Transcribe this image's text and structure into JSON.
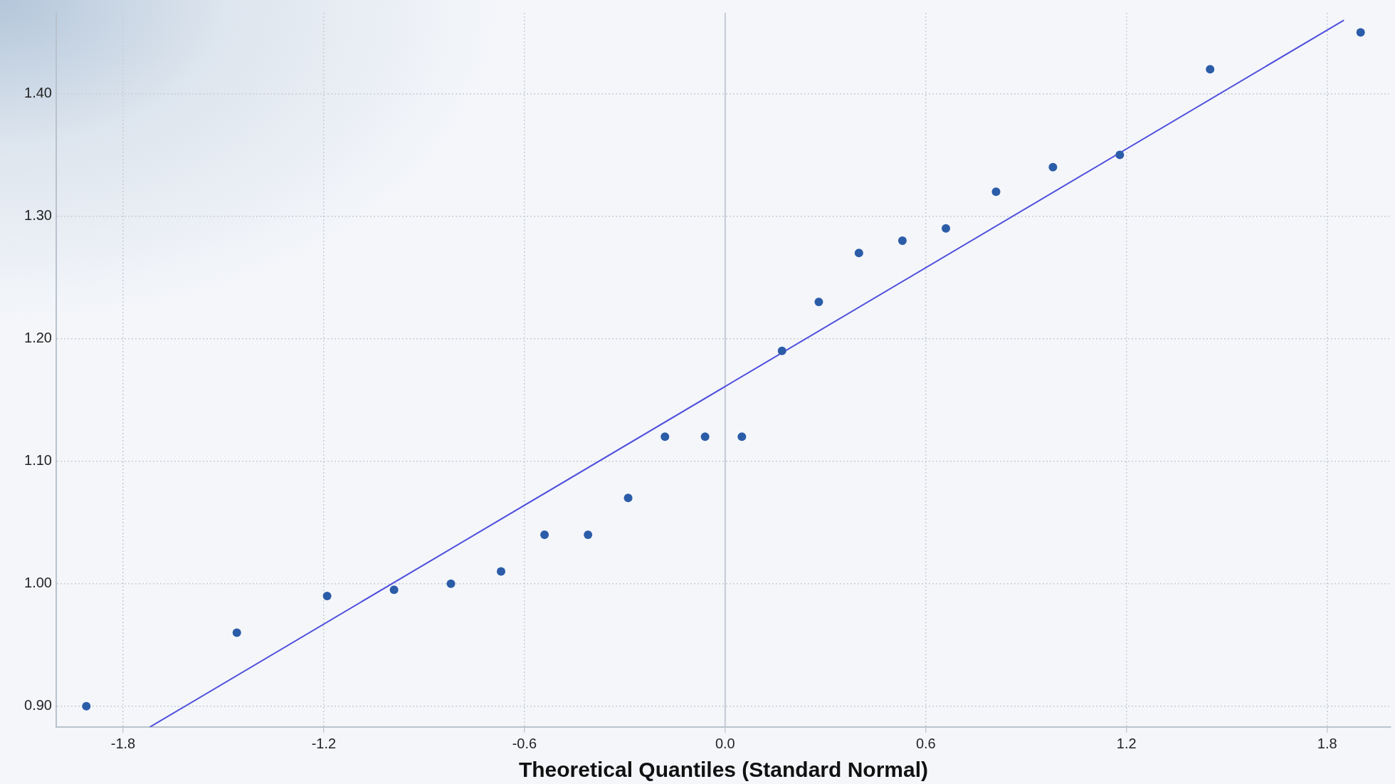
{
  "chart_data": {
    "type": "scatter",
    "xlabel": "Theoretical Quantiles (Standard Normal)",
    "x": [
      -1.91,
      -1.46,
      -1.19,
      -0.99,
      -0.82,
      -0.67,
      -0.54,
      -0.41,
      -0.29,
      -0.18,
      -0.06,
      0.05,
      0.17,
      0.28,
      0.4,
      0.53,
      0.66,
      0.81,
      0.98,
      1.18,
      1.45,
      1.9
    ],
    "series": [
      {
        "type": "scatter",
        "color": "#2b5ca8",
        "marker": "circle",
        "values": [
          0.9,
          0.96,
          0.99,
          0.995,
          1.0,
          1.01,
          1.04,
          1.04,
          1.07,
          1.12,
          1.12,
          1.12,
          1.19,
          1.23,
          1.27,
          1.28,
          1.29,
          1.32,
          1.34,
          1.35,
          1.42,
          1.45
        ]
      },
      {
        "type": "line",
        "color": "#5050dd",
        "marker": "none",
        "line_style": "solid",
        "x": [
          -1.72,
          1.85
        ],
        "values": [
          0.883,
          1.46
        ]
      }
    ],
    "xlim": [
      -2.0,
      1.99
    ],
    "ylim": [
      0.883,
      1.466
    ],
    "xticks": [
      -1.8,
      -1.2,
      -0.6,
      {
        "value": 0,
        "label": "0.0"
      },
      0.6,
      1.2,
      1.8
    ],
    "yticks": [
      {
        "value": 0.9,
        "label": "0.90"
      },
      {
        "value": 1.0,
        "label": "1.00"
      },
      {
        "value": 1.1,
        "label": "1.10"
      },
      {
        "value": 1.2,
        "label": "1.20"
      },
      {
        "value": 1.3,
        "label": "1.30"
      },
      {
        "value": 1.4,
        "label": "1.40"
      }
    ],
    "ref_lines": [
      {
        "axis": "x",
        "value": 0,
        "color": "#c4ccd6",
        "line_style": "solid"
      }
    ],
    "grid": true,
    "legend": false
  }
}
